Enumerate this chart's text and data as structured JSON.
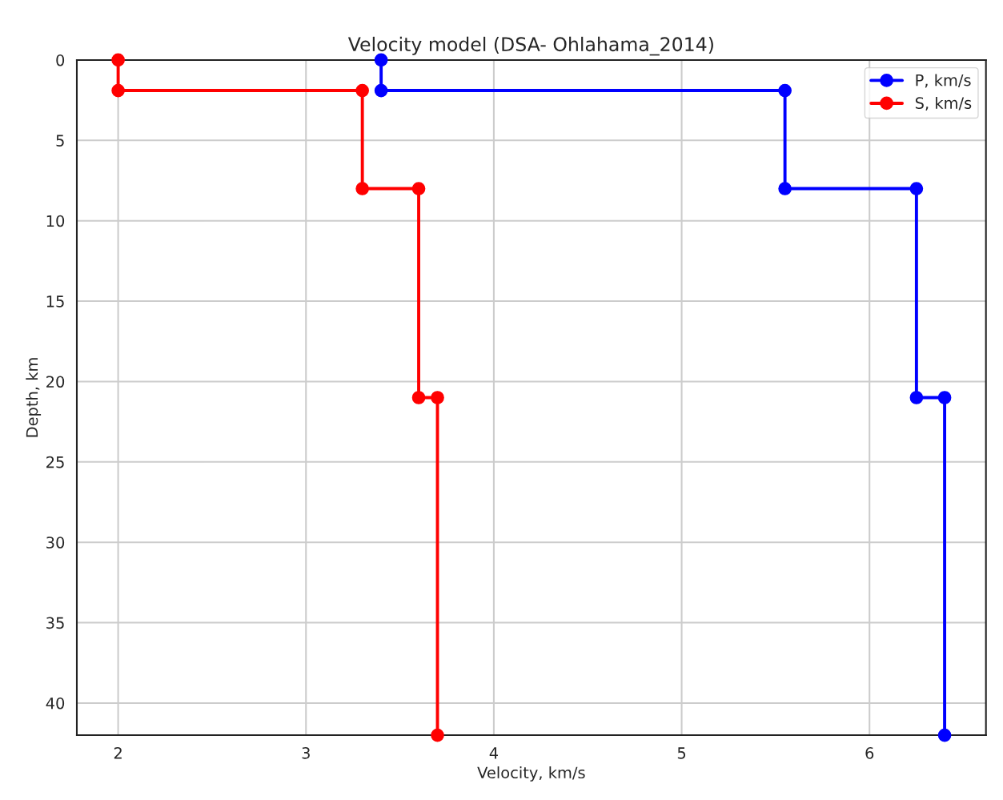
{
  "chart_data": {
    "type": "line",
    "title": "Velocity model (DSA- Ohlahama_2014)",
    "xlabel": "Velocity, km/s",
    "ylabel": "Depth, km",
    "series": [
      {
        "name": "P, km/s",
        "color": "#0000ff",
        "x": [
          3.4,
          3.4,
          5.55,
          5.55,
          6.25,
          6.25,
          6.4,
          6.4
        ],
        "values": [
          0,
          1.9,
          1.9,
          8,
          8,
          21,
          21,
          42
        ]
      },
      {
        "name": "S, km/s",
        "color": "#ff0000",
        "x": [
          2,
          2,
          3.3,
          3.3,
          3.6,
          3.6,
          3.7,
          3.7
        ],
        "values": [
          0,
          1.9,
          1.9,
          8,
          8,
          21,
          21,
          42
        ]
      }
    ],
    "xlim": [
      1.78,
      6.62
    ],
    "xticks": [
      2,
      3,
      4,
      5,
      6
    ],
    "ylim": [
      42,
      0
    ],
    "yticks": [
      0,
      5,
      10,
      15,
      20,
      25,
      30,
      35,
      40
    ],
    "grid": true,
    "legend": "top right",
    "marker": "circle",
    "line_style": "solid"
  }
}
